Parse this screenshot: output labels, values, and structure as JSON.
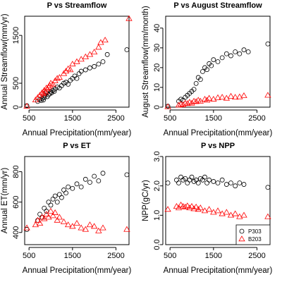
{
  "chart_data": [
    {
      "type": "scatter",
      "title": "P vs Streamflow",
      "xlabel": "Annual Precipitation(mm/year)",
      "ylabel": "Annual Streamflow(mm/yr)",
      "xlim": [
        400,
        2800
      ],
      "ylim": [
        0,
        1900
      ],
      "xticks": [
        500,
        1500,
        2500
      ],
      "yticks": [
        0,
        500,
        1500
      ],
      "grid": false,
      "series": [
        {
          "name": "P303",
          "marker": "circle",
          "color": "#000000",
          "points": [
            [
              450,
              30
            ],
            [
              700,
              120
            ],
            [
              750,
              160
            ],
            [
              780,
              140
            ],
            [
              800,
              180
            ],
            [
              830,
              150
            ],
            [
              850,
              200
            ],
            [
              870,
              250
            ],
            [
              900,
              300
            ],
            [
              920,
              220
            ],
            [
              950,
              260
            ],
            [
              980,
              280
            ],
            [
              1000,
              320
            ],
            [
              1020,
              300
            ],
            [
              1050,
              350
            ],
            [
              1080,
              330
            ],
            [
              1100,
              380
            ],
            [
              1150,
              420
            ],
            [
              1200,
              400
            ],
            [
              1250,
              450
            ],
            [
              1300,
              500
            ],
            [
              1350,
              520
            ],
            [
              1400,
              480
            ],
            [
              1450,
              560
            ],
            [
              1500,
              600
            ],
            [
              1550,
              650
            ],
            [
              1600,
              600
            ],
            [
              1650,
              700
            ],
            [
              1700,
              750
            ],
            [
              1800,
              780
            ],
            [
              1900,
              820
            ],
            [
              2000,
              850
            ],
            [
              2100,
              900
            ],
            [
              2200,
              950
            ],
            [
              2300,
              1100
            ],
            [
              2750,
              1200
            ]
          ]
        },
        {
          "name": "B203",
          "marker": "triangle",
          "color": "#ff0000",
          "points": [
            [
              450,
              20
            ],
            [
              650,
              150
            ],
            [
              700,
              200
            ],
            [
              750,
              250
            ],
            [
              800,
              300
            ],
            [
              830,
              280
            ],
            [
              850,
              350
            ],
            [
              880,
              320
            ],
            [
              900,
              400
            ],
            [
              920,
              380
            ],
            [
              950,
              420
            ],
            [
              980,
              450
            ],
            [
              1000,
              500
            ],
            [
              1050,
              480
            ],
            [
              1100,
              550
            ],
            [
              1150,
              600
            ],
            [
              1200,
              620
            ],
            [
              1300,
              700
            ],
            [
              1350,
              750
            ],
            [
              1400,
              800
            ],
            [
              1450,
              780
            ],
            [
              1500,
              900
            ],
            [
              1600,
              950
            ],
            [
              1700,
              1000
            ],
            [
              1800,
              1050
            ],
            [
              1900,
              1100
            ],
            [
              2000,
              1150
            ],
            [
              2100,
              1250
            ],
            [
              2150,
              1350
            ],
            [
              2250,
              1400
            ],
            [
              2800,
              1850
            ]
          ]
        }
      ]
    },
    {
      "type": "scatter",
      "title": "P vs August Streamflow",
      "xlabel": "Annual Precipitation(mm/year)",
      "ylabel": "August Streamflow(mm/month)",
      "xlim": [
        400,
        2800
      ],
      "ylim": [
        0,
        46
      ],
      "xticks": [
        500,
        1500,
        2500
      ],
      "yticks": [
        0,
        10,
        20,
        30,
        40
      ],
      "grid": false,
      "series": [
        {
          "name": "P303",
          "marker": "circle",
          "color": "#000000",
          "points": [
            [
              450,
              0.5
            ],
            [
              700,
              3
            ],
            [
              750,
              4
            ],
            [
              800,
              3.5
            ],
            [
              850,
              5
            ],
            [
              900,
              6
            ],
            [
              950,
              7
            ],
            [
              1000,
              8
            ],
            [
              1050,
              9
            ],
            [
              1100,
              12
            ],
            [
              1150,
              15
            ],
            [
              1200,
              14
            ],
            [
              1250,
              18
            ],
            [
              1300,
              20
            ],
            [
              1350,
              19
            ],
            [
              1400,
              22
            ],
            [
              1450,
              21
            ],
            [
              1500,
              24
            ],
            [
              1600,
              23
            ],
            [
              1700,
              25
            ],
            [
              1800,
              27
            ],
            [
              1900,
              26
            ],
            [
              2000,
              28
            ],
            [
              2100,
              27
            ],
            [
              2200,
              29
            ],
            [
              2300,
              28
            ],
            [
              2750,
              32
            ]
          ]
        },
        {
          "name": "B203",
          "marker": "triangle",
          "color": "#ff0000",
          "points": [
            [
              450,
              0.2
            ],
            [
              700,
              1
            ],
            [
              750,
              1.5
            ],
            [
              800,
              1.2
            ],
            [
              850,
              2
            ],
            [
              900,
              1.8
            ],
            [
              950,
              2.5
            ],
            [
              1000,
              2
            ],
            [
              1050,
              3
            ],
            [
              1100,
              2.8
            ],
            [
              1150,
              3.5
            ],
            [
              1200,
              3
            ],
            [
              1300,
              4
            ],
            [
              1350,
              3.5
            ],
            [
              1400,
              4.5
            ],
            [
              1500,
              4
            ],
            [
              1600,
              4.8
            ],
            [
              1700,
              5
            ],
            [
              1800,
              4.5
            ],
            [
              1900,
              5.5
            ],
            [
              2000,
              5
            ],
            [
              2100,
              5.2
            ],
            [
              2200,
              5.8
            ],
            [
              2750,
              6
            ]
          ]
        }
      ]
    },
    {
      "type": "scatter",
      "title": "P vs ET",
      "xlabel": "Annual Precipitation(mm/year)",
      "ylabel": "Annual ET(mm/yr)",
      "xlim": [
        400,
        2800
      ],
      "ylim": [
        320,
        900
      ],
      "xticks": [
        500,
        1500,
        2500
      ],
      "yticks": [
        400,
        600,
        800
      ],
      "grid": false,
      "series": [
        {
          "name": "P303",
          "marker": "circle",
          "color": "#000000",
          "points": [
            [
              450,
              420
            ],
            [
              700,
              480
            ],
            [
              750,
              520
            ],
            [
              800,
              500
            ],
            [
              850,
              560
            ],
            [
              900,
              540
            ],
            [
              950,
              600
            ],
            [
              1000,
              580
            ],
            [
              1050,
              620
            ],
            [
              1100,
              640
            ],
            [
              1150,
              600
            ],
            [
              1200,
              650
            ],
            [
              1250,
              630
            ],
            [
              1300,
              680
            ],
            [
              1350,
              660
            ],
            [
              1400,
              700
            ],
            [
              1500,
              690
            ],
            [
              1600,
              720
            ],
            [
              1700,
              700
            ],
            [
              1800,
              750
            ],
            [
              1900,
              730
            ],
            [
              2000,
              770
            ],
            [
              2100,
              740
            ],
            [
              2200,
              790
            ],
            [
              2750,
              780
            ]
          ]
        },
        {
          "name": "B203",
          "marker": "triangle",
          "color": "#ff0000",
          "points": [
            [
              450,
              430
            ],
            [
              650,
              450
            ],
            [
              700,
              480
            ],
            [
              750,
              460
            ],
            [
              800,
              500
            ],
            [
              850,
              490
            ],
            [
              900,
              520
            ],
            [
              950,
              500
            ],
            [
              1000,
              540
            ],
            [
              1050,
              510
            ],
            [
              1100,
              530
            ],
            [
              1150,
              480
            ],
            [
              1200,
              500
            ],
            [
              1300,
              470
            ],
            [
              1400,
              450
            ],
            [
              1500,
              440
            ],
            [
              1600,
              460
            ],
            [
              1700,
              430
            ],
            [
              1800,
              420
            ],
            [
              1900,
              450
            ],
            [
              2000,
              440
            ],
            [
              2100,
              410
            ],
            [
              2200,
              430
            ],
            [
              2750,
              420
            ]
          ]
        }
      ]
    },
    {
      "type": "scatter",
      "title": "P vs NPP",
      "xlabel": "Annual Precipitation(mm/year)",
      "ylabel": "NPP(gC/yr)",
      "xlim": [
        400,
        2800
      ],
      "ylim": [
        0,
        3
      ],
      "xticks": [
        500,
        1500,
        2500
      ],
      "yticks": [
        0.0,
        1.0,
        2.0,
        3.0
      ],
      "grid": false,
      "legend": {
        "position": "bottom-right",
        "entries": [
          "P303",
          "B203"
        ]
      },
      "series": [
        {
          "name": "P303",
          "marker": "circle",
          "color": "#000000",
          "points": [
            [
              450,
              2.1
            ],
            [
              650,
              2.2
            ],
            [
              700,
              2.1
            ],
            [
              750,
              2.3
            ],
            [
              800,
              2.2
            ],
            [
              850,
              2.25
            ],
            [
              900,
              2.1
            ],
            [
              950,
              2.2
            ],
            [
              1000,
              2.3
            ],
            [
              1050,
              2.15
            ],
            [
              1100,
              2.2
            ],
            [
              1150,
              2.1
            ],
            [
              1200,
              2.25
            ],
            [
              1250,
              2.2
            ],
            [
              1300,
              2.3
            ],
            [
              1350,
              2.1
            ],
            [
              1400,
              2.2
            ],
            [
              1500,
              2.15
            ],
            [
              1600,
              2.1
            ],
            [
              1700,
              2.2
            ],
            [
              1800,
              2.05
            ],
            [
              1900,
              2.1
            ],
            [
              2000,
              2.0
            ],
            [
              2100,
              2.1
            ],
            [
              2200,
              2.05
            ],
            [
              2750,
              1.95
            ]
          ]
        },
        {
          "name": "B203",
          "marker": "triangle",
          "color": "#ff0000",
          "points": [
            [
              450,
              1.2
            ],
            [
              650,
              1.3
            ],
            [
              700,
              1.25
            ],
            [
              750,
              1.35
            ],
            [
              800,
              1.3
            ],
            [
              850,
              1.28
            ],
            [
              900,
              1.32
            ],
            [
              950,
              1.25
            ],
            [
              1000,
              1.3
            ],
            [
              1050,
              1.22
            ],
            [
              1100,
              1.28
            ],
            [
              1150,
              1.2
            ],
            [
              1200,
              1.25
            ],
            [
              1300,
              1.15
            ],
            [
              1400,
              1.2
            ],
            [
              1500,
              1.1
            ],
            [
              1600,
              1.15
            ],
            [
              1700,
              1.05
            ],
            [
              1800,
              1.1
            ],
            [
              1900,
              1.0
            ],
            [
              2000,
              1.05
            ],
            [
              2100,
              0.95
            ],
            [
              2200,
              1.0
            ],
            [
              2750,
              0.95
            ]
          ]
        }
      ]
    }
  ]
}
